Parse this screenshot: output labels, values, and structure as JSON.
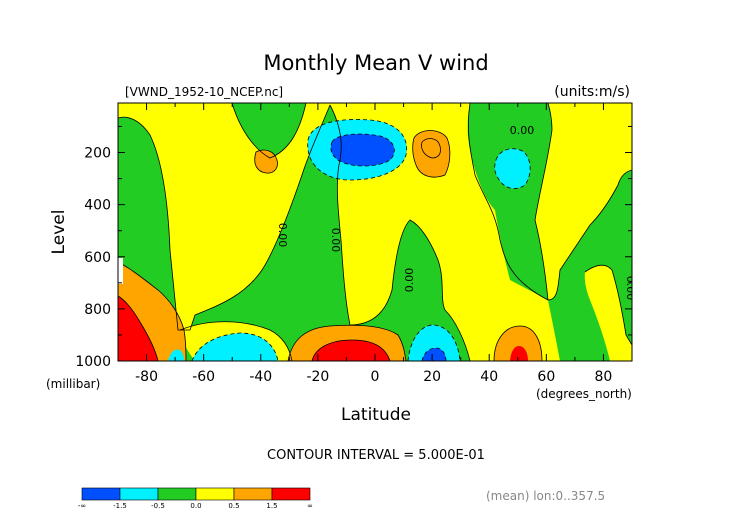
{
  "chart_data": {
    "type": "contour",
    "title": "Monthly Mean V wind",
    "dataset_label": "[VWND_1952-10_NCEP.nc]",
    "units_label": "(units:m/s)",
    "xlabel": "Latitude",
    "x_units": "(degrees_north)",
    "ylabel": "Level",
    "y_units": "(millibar)",
    "xlim": [
      -90,
      90
    ],
    "ylim": [
      1000,
      10
    ],
    "x_ticks": [
      "-80",
      "-60",
      "-40",
      "-20",
      "0",
      "20",
      "40",
      "60",
      "80"
    ],
    "y_ticks": [
      "200",
      "400",
      "600",
      "800",
      "1000"
    ],
    "contour_interval_text": "CONTOUR INTERVAL = 5.000E-01",
    "contour_labels": [
      "0.00",
      "0.00",
      "0.00",
      "0.00",
      "0.00",
      "0.00"
    ],
    "footer_text": "(mean) lon:0..357.5",
    "colorbar": {
      "colors": [
        "#0050ff",
        "#00f0ff",
        "#22cc22",
        "#ffff00",
        "#ffa500",
        "#ff0000"
      ],
      "labels": [
        "-∞",
        "-1.5",
        "-0.5",
        "0.0",
        "0.5",
        "1.5",
        "∞"
      ]
    },
    "features": [
      {
        "lat": -10,
        "level": 170,
        "value": -2.0
      },
      {
        "lat": -10,
        "level": 950,
        "value": 2.0
      },
      {
        "lat": 20,
        "level": 165,
        "value": 1.0
      },
      {
        "lat": 52,
        "level": 220,
        "value": -1.0
      },
      {
        "lat": 20,
        "level": 960,
        "value": -2.0
      },
      {
        "lat": 50,
        "level": 960,
        "value": 1.5
      },
      {
        "lat": -85,
        "level": 960,
        "value": 2.0
      },
      {
        "lat": -50,
        "level": 980,
        "value": -1.0
      },
      {
        "lat": -40,
        "level": 185,
        "value": 0.7
      }
    ]
  }
}
